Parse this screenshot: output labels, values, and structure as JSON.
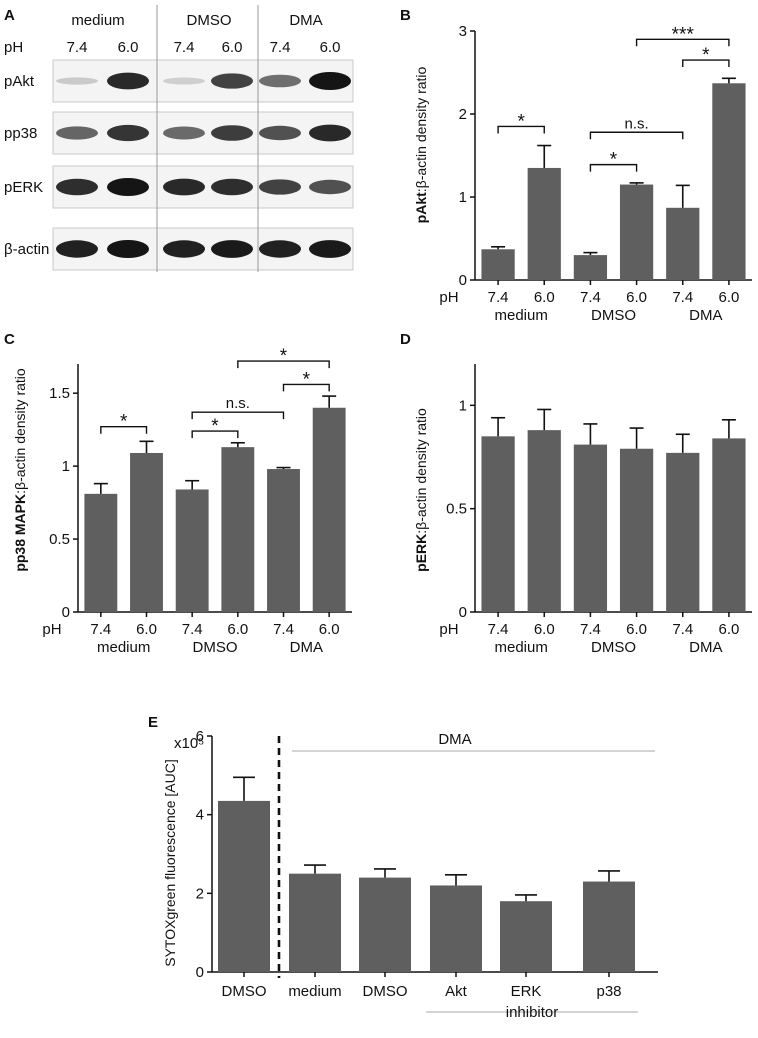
{
  "colors": {
    "bar": "#5f5f5f",
    "axis": "#111111",
    "band": "#151515",
    "rule": "#bbbbbb"
  },
  "blot": {
    "panel_label": "A",
    "groups": [
      "medium",
      "DMSO",
      "DMA"
    ],
    "ph_label": "pH",
    "ph_values": [
      "7.4",
      "6.0",
      "7.4",
      "6.0",
      "7.4",
      "6.0"
    ],
    "rows": [
      {
        "name": "pAkt",
        "intensity": [
          0.1,
          0.9,
          0.08,
          0.78,
          0.55,
          1.0
        ]
      },
      {
        "name": "pp38",
        "intensity": [
          0.6,
          0.85,
          0.58,
          0.8,
          0.7,
          0.9
        ]
      },
      {
        "name": "pERK",
        "intensity": [
          0.88,
          1.0,
          0.9,
          0.88,
          0.78,
          0.7
        ]
      },
      {
        "name": "β-actin",
        "intensity": [
          0.95,
          1.0,
          0.95,
          0.98,
          0.95,
          0.98
        ]
      }
    ]
  },
  "chart_data": [
    {
      "panel": "B",
      "type": "bar",
      "ylabel_bold": "pAkt",
      "ylabel_rest": ":β-actin density ratio",
      "ylim": [
        0,
        3
      ],
      "yticks": [
        "0",
        "1",
        "2",
        "3"
      ],
      "ph_label": "pH",
      "categories": [
        "7.4",
        "6.0",
        "7.4",
        "6.0",
        "7.4",
        "6.0"
      ],
      "groups": [
        "medium",
        "DMSO",
        "DMA"
      ],
      "values": [
        0.37,
        1.35,
        0.3,
        1.15,
        0.87,
        2.37
      ],
      "errors": [
        0.03,
        0.27,
        0.03,
        0.02,
        0.27,
        0.06
      ],
      "annotations": [
        {
          "from": 0,
          "to": 1,
          "y": 1.85,
          "label": "*"
        },
        {
          "from": 2,
          "to": 3,
          "y": 1.39,
          "label": "*"
        },
        {
          "from": 2,
          "to": 4,
          "y": 1.78,
          "label": "n.s."
        },
        {
          "from": 4,
          "to": 5,
          "y": 2.65,
          "label": "*"
        },
        {
          "from": 3,
          "to": 5,
          "y": 2.9,
          "label": "***"
        }
      ]
    },
    {
      "panel": "C",
      "type": "bar",
      "ylabel_bold": "pp38 MAPK",
      "ylabel_rest": ":β-actin density ratio",
      "ylim": [
        0,
        1.7
      ],
      "yticks": [
        "0",
        "0.5",
        "1",
        "1.5"
      ],
      "ph_label": "pH",
      "categories": [
        "7.4",
        "6.0",
        "7.4",
        "6.0",
        "7.4",
        "6.0"
      ],
      "groups": [
        "medium",
        "DMSO",
        "DMA"
      ],
      "values": [
        0.81,
        1.09,
        0.84,
        1.13,
        0.98,
        1.4
      ],
      "errors": [
        0.07,
        0.08,
        0.06,
        0.03,
        0.01,
        0.08
      ],
      "annotations": [
        {
          "from": 0,
          "to": 1,
          "y": 1.27,
          "label": "*"
        },
        {
          "from": 2,
          "to": 3,
          "y": 1.24,
          "label": "*"
        },
        {
          "from": 2,
          "to": 4,
          "y": 1.37,
          "label": "n.s."
        },
        {
          "from": 4,
          "to": 5,
          "y": 1.56,
          "label": "*"
        },
        {
          "from": 3,
          "to": 5,
          "y": 1.72,
          "label": "*"
        }
      ]
    },
    {
      "panel": "D",
      "type": "bar",
      "ylabel_bold": "pERK",
      "ylabel_rest": ":β-actin density ratio",
      "ylim": [
        0,
        1.2
      ],
      "yticks": [
        "0",
        "0.5",
        "1"
      ],
      "ph_label": "pH",
      "categories": [
        "7.4",
        "6.0",
        "7.4",
        "6.0",
        "7.4",
        "6.0"
      ],
      "groups": [
        "medium",
        "DMSO",
        "DMA"
      ],
      "values": [
        0.85,
        0.88,
        0.81,
        0.79,
        0.77,
        0.84
      ],
      "errors": [
        0.09,
        0.1,
        0.1,
        0.1,
        0.09,
        0.09
      ],
      "annotations": []
    },
    {
      "panel": "E",
      "type": "bar",
      "ylabel": "SYTOXgreen fluorescence [AUC]",
      "yunit": "x10⁵",
      "ylim": [
        0,
        6
      ],
      "yticks": [
        "0",
        "2",
        "4",
        "6"
      ],
      "categories": [
        "DMSO",
        "medium",
        "DMSO",
        "Akt",
        "ERK",
        "p38"
      ],
      "values": [
        4.35,
        2.5,
        2.4,
        2.2,
        1.8,
        2.3
      ],
      "errors": [
        0.6,
        0.22,
        0.22,
        0.27,
        0.16,
        0.27
      ],
      "group_label": "DMA",
      "inhibitor_label": "inhibitor"
    }
  ]
}
